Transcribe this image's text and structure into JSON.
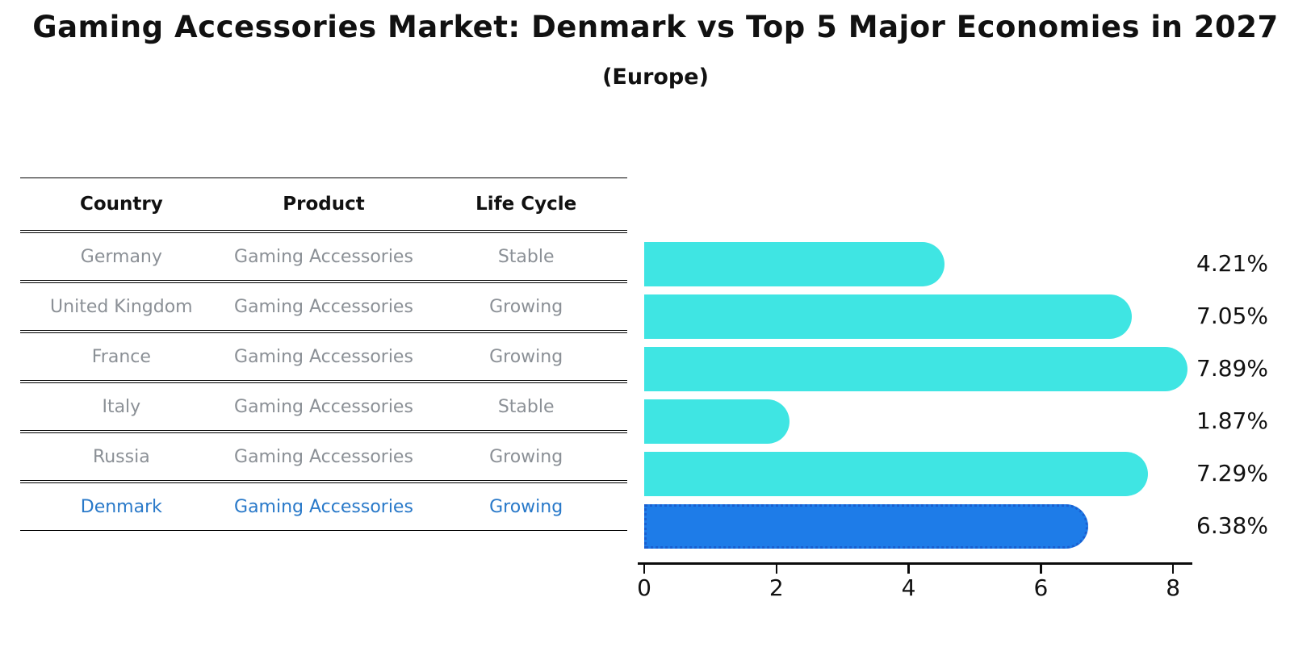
{
  "title": "Gaming Accessories Market: Denmark vs Top 5 Major Economies in 2027",
  "subtitle": "(Europe)",
  "table": {
    "headers": {
      "country": "Country",
      "product": "Product",
      "life_cycle": "Life Cycle"
    },
    "rows": [
      {
        "country": "Germany",
        "product": "Gaming Accessories",
        "life_cycle": "Stable",
        "highlight": false
      },
      {
        "country": "United Kingdom",
        "product": "Gaming Accessories",
        "life_cycle": "Growing",
        "highlight": false
      },
      {
        "country": "France",
        "product": "Gaming Accessories",
        "life_cycle": "Growing",
        "highlight": false
      },
      {
        "country": "Italy",
        "product": "Gaming Accessories",
        "life_cycle": "Stable",
        "highlight": false
      },
      {
        "country": "Russia",
        "product": "Gaming Accessories",
        "life_cycle": "Growing",
        "highlight": true
      },
      {
        "country": "Denmark",
        "product": "Gaming Accessories",
        "life_cycle": "Growing",
        "highlight": true
      }
    ]
  },
  "chart_data": {
    "type": "bar",
    "orientation": "horizontal",
    "title": "Gaming Accessories Market: Denmark vs Top 5 Major Economies in 2027",
    "subtitle": "(Europe)",
    "categories": [
      "Germany",
      "United Kingdom",
      "France",
      "Italy",
      "Russia",
      "Denmark"
    ],
    "values": [
      4.21,
      7.05,
      7.89,
      1.87,
      7.29,
      6.38
    ],
    "value_labels": [
      "4.21%",
      "7.05%",
      "7.89%",
      "1.87%",
      "7.29%",
      "6.38%"
    ],
    "unit": "%",
    "xlim": [
      0,
      8
    ],
    "x_ticks": [
      0,
      2,
      4,
      6,
      8
    ],
    "grid": false,
    "legend": "none",
    "highlight_category": "Denmark",
    "bar_color": "#3FE5E3",
    "highlight_color": "#1E7CE8"
  },
  "colors": {
    "bar": "#3FE5E3",
    "bar_highlight": "#1E7CE8",
    "bar_highlight_border": "#1A5FD0",
    "highlight_text": "#2979C9",
    "row_text": "#8B9096",
    "axis": "#0B0B0B"
  }
}
